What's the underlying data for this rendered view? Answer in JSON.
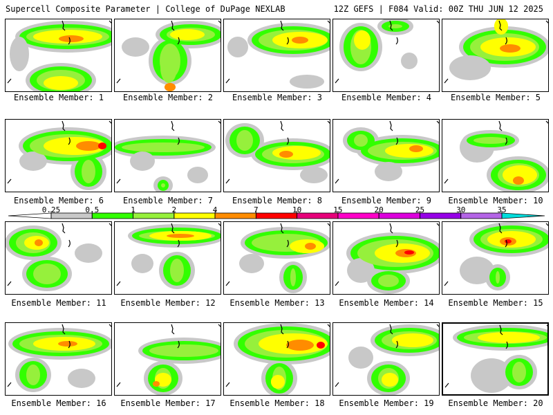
{
  "header": {
    "left": "Supercell Composite Parameter | College of DuPage NEXLAB",
    "right": "12Z GEFS | F084 Valid: 00Z THU JUN 12 2025"
  },
  "member_label_prefix": "Ensemble Member: ",
  "members": [
    {
      "id": "1",
      "label": "Ensemble Member: 1",
      "max": "4"
    },
    {
      "id": "2",
      "label": "Ensemble Member: 2",
      "max": "7"
    },
    {
      "id": "3",
      "label": "Ensemble Member: 3",
      "max": "7"
    },
    {
      "id": "4",
      "label": "Ensemble Member: 4",
      "max": "4"
    },
    {
      "id": "5",
      "label": "Ensemble Member: 5",
      "max": "7"
    },
    {
      "id": "6",
      "label": "Ensemble Member: 6",
      "max": "10"
    },
    {
      "id": "7",
      "label": "Ensemble Member: 7",
      "max": "2"
    },
    {
      "id": "8",
      "label": "Ensemble Member: 8",
      "max": "7"
    },
    {
      "id": "9",
      "label": "Ensemble Member: 9",
      "max": "7"
    },
    {
      "id": "10",
      "label": "Ensemble Member: 10",
      "max": "7"
    },
    {
      "id": "11",
      "label": "Ensemble Member: 11",
      "max": "7"
    },
    {
      "id": "12",
      "label": "Ensemble Member: 12",
      "max": "7"
    },
    {
      "id": "13",
      "label": "Ensemble Member: 13",
      "max": "4"
    },
    {
      "id": "14",
      "label": "Ensemble Member: 14",
      "max": "10"
    },
    {
      "id": "15",
      "label": "Ensemble Member: 15",
      "max": "10"
    },
    {
      "id": "16",
      "label": "Ensemble Member: 16",
      "max": "4"
    },
    {
      "id": "17",
      "label": "Ensemble Member: 17",
      "max": "7"
    },
    {
      "id": "18",
      "label": "Ensemble Member: 18",
      "max": "10"
    },
    {
      "id": "19",
      "label": "Ensemble Member: 19",
      "max": "7"
    },
    {
      "id": "20",
      "label": "Ensemble Member: 20",
      "max": "4"
    }
  ],
  "selected_member": "20",
  "legend": {
    "ticks": [
      "0.25",
      "0.5",
      "1",
      "2",
      "4",
      "7",
      "10",
      "15",
      "20",
      "25",
      "30",
      "35"
    ],
    "colors": [
      "#ffffff",
      "#c8c8c8",
      "#32ff00",
      "#96f03c",
      "#ffff00",
      "#ff8c00",
      "#ff0000",
      "#e6007a",
      "#ff00c8",
      "#dc00dc",
      "#9600e6",
      "#b464e6",
      "#00dcdc"
    ]
  },
  "colors": {
    "gray": "#c8c8c8",
    "green": "#32ff00",
    "light_green": "#96f03c",
    "yellow": "#ffff00",
    "orange": "#ff8c00",
    "red": "#ff0000",
    "coastline": "#000000"
  }
}
